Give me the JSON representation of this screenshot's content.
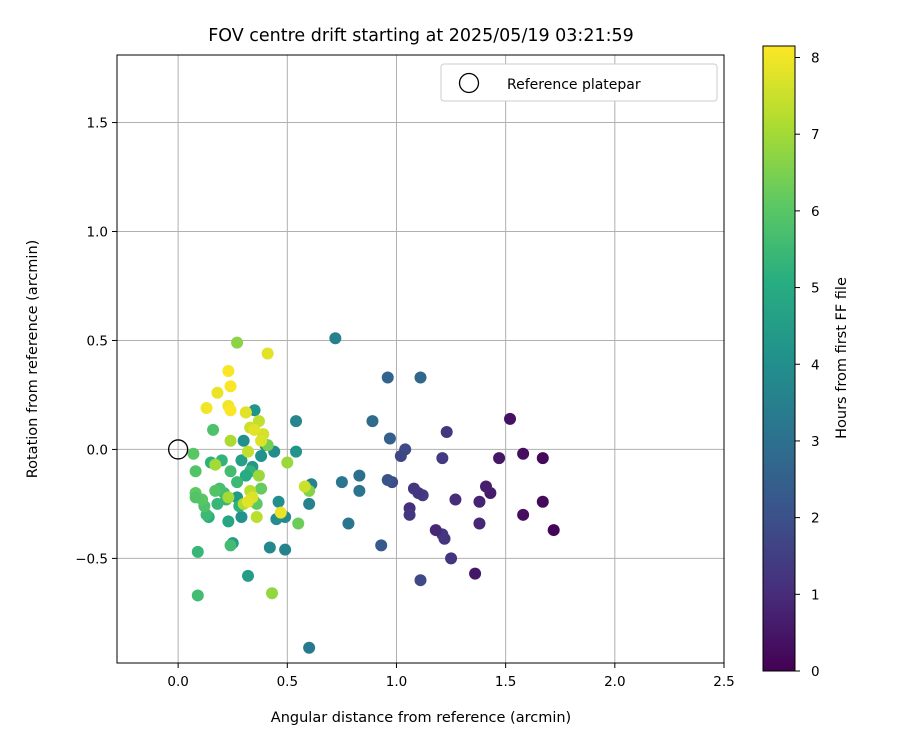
{
  "chart_data": {
    "type": "scatter",
    "title": "FOV centre drift starting at 2025/05/19 03:21:59",
    "xlabel": "Angular distance from reference (arcmin)",
    "ylabel": "Rotation from reference (arcmin)",
    "xlim": [
      -0.28,
      2.5
    ],
    "ylim": [
      -0.98,
      1.81
    ],
    "xticks": [
      0.0,
      0.5,
      1.0,
      1.5,
      2.0,
      2.5
    ],
    "xtick_labels": [
      "0.0",
      "0.5",
      "1.0",
      "1.5",
      "2.0",
      "2.5"
    ],
    "yticks": [
      -0.5,
      0.0,
      0.5,
      1.0,
      1.5
    ],
    "ytick_labels": [
      "−0.5",
      "0.0",
      "0.5",
      "1.0",
      "1.5"
    ],
    "grid": true,
    "colormap": "viridis",
    "colorbar": {
      "label": "Hours from first FF file",
      "min": 0,
      "max": 8.15,
      "ticks": [
        0,
        1,
        2,
        3,
        4,
        5,
        6,
        7,
        8
      ],
      "tick_labels": [
        "0",
        "1",
        "2",
        "3",
        "4",
        "5",
        "6",
        "7",
        "8"
      ]
    },
    "legend": {
      "position": "top-right",
      "entries": [
        {
          "label": "Reference platepar",
          "marker": "open-circle"
        }
      ]
    },
    "reference_point": {
      "x": 0.0,
      "y": 0.0
    },
    "points": [
      {
        "x": 1.72,
        "y": -0.37,
        "h": 0.1
      },
      {
        "x": 1.67,
        "y": -0.04,
        "h": 0.2
      },
      {
        "x": 1.67,
        "y": -0.24,
        "h": 0.2
      },
      {
        "x": 1.58,
        "y": -0.02,
        "h": 0.3
      },
      {
        "x": 1.58,
        "y": -0.3,
        "h": 0.3
      },
      {
        "x": 1.52,
        "y": 0.14,
        "h": 0.4
      },
      {
        "x": 1.47,
        "y": -0.04,
        "h": 0.5
      },
      {
        "x": 1.43,
        "y": -0.2,
        "h": 0.6
      },
      {
        "x": 1.41,
        "y": -0.17,
        "h": 0.7
      },
      {
        "x": 1.38,
        "y": -0.24,
        "h": 0.8
      },
      {
        "x": 1.38,
        "y": -0.34,
        "h": 0.9
      },
      {
        "x": 1.36,
        "y": -0.57,
        "h": 0.5
      },
      {
        "x": 1.27,
        "y": -0.23,
        "h": 1.0
      },
      {
        "x": 1.25,
        "y": -0.5,
        "h": 1.2
      },
      {
        "x": 1.23,
        "y": 0.08,
        "h": 1.3
      },
      {
        "x": 1.22,
        "y": -0.41,
        "h": 1.2
      },
      {
        "x": 1.21,
        "y": -0.39,
        "h": 1.3
      },
      {
        "x": 1.21,
        "y": -0.04,
        "h": 1.4
      },
      {
        "x": 1.18,
        "y": -0.37,
        "h": 0.9
      },
      {
        "x": 1.12,
        "y": -0.21,
        "h": 1.4
      },
      {
        "x": 1.11,
        "y": -0.6,
        "h": 1.8
      },
      {
        "x": 1.1,
        "y": -0.2,
        "h": 1.2
      },
      {
        "x": 1.08,
        "y": -0.18,
        "h": 1.3
      },
      {
        "x": 1.06,
        "y": -0.27,
        "h": 1.1
      },
      {
        "x": 1.06,
        "y": -0.3,
        "h": 1.3
      },
      {
        "x": 1.04,
        "y": 0.0,
        "h": 1.8
      },
      {
        "x": 1.02,
        "y": -0.03,
        "h": 1.7
      },
      {
        "x": 0.98,
        "y": -0.15,
        "h": 1.9
      },
      {
        "x": 0.96,
        "y": -0.14,
        "h": 2.1
      },
      {
        "x": 0.97,
        "y": 0.05,
        "h": 2.5
      },
      {
        "x": 0.96,
        "y": 0.33,
        "h": 2.6
      },
      {
        "x": 1.11,
        "y": 0.33,
        "h": 2.7
      },
      {
        "x": 0.93,
        "y": -0.44,
        "h": 2.3
      },
      {
        "x": 0.89,
        "y": 0.13,
        "h": 2.8
      },
      {
        "x": 0.83,
        "y": -0.12,
        "h": 3.0
      },
      {
        "x": 0.83,
        "y": -0.19,
        "h": 3.1
      },
      {
        "x": 0.78,
        "y": -0.34,
        "h": 3.2
      },
      {
        "x": 0.75,
        "y": -0.15,
        "h": 3.2
      },
      {
        "x": 0.72,
        "y": 0.51,
        "h": 3.5
      },
      {
        "x": 0.61,
        "y": -0.16,
        "h": 3.6
      },
      {
        "x": 0.6,
        "y": -0.25,
        "h": 3.6
      },
      {
        "x": 0.6,
        "y": -0.91,
        "h": 3.3
      },
      {
        "x": 0.54,
        "y": 0.13,
        "h": 3.7
      },
      {
        "x": 0.54,
        "y": -0.01,
        "h": 4.2
      },
      {
        "x": 0.49,
        "y": -0.46,
        "h": 3.6
      },
      {
        "x": 0.49,
        "y": -0.31,
        "h": 3.8
      },
      {
        "x": 0.46,
        "y": -0.24,
        "h": 4.0
      },
      {
        "x": 0.45,
        "y": -0.32,
        "h": 3.9
      },
      {
        "x": 0.42,
        "y": -0.45,
        "h": 3.8
      },
      {
        "x": 0.44,
        "y": -0.01,
        "h": 3.9
      },
      {
        "x": 0.4,
        "y": 0.02,
        "h": 3.8
      },
      {
        "x": 0.38,
        "y": -0.03,
        "h": 4.1
      },
      {
        "x": 0.35,
        "y": 0.18,
        "h": 4.2
      },
      {
        "x": 0.34,
        "y": -0.08,
        "h": 4.3
      },
      {
        "x": 0.3,
        "y": 0.04,
        "h": 4.0
      },
      {
        "x": 0.29,
        "y": -0.05,
        "h": 4.6
      },
      {
        "x": 0.29,
        "y": -0.31,
        "h": 4.1
      },
      {
        "x": 0.27,
        "y": -0.22,
        "h": 4.4
      },
      {
        "x": 0.25,
        "y": -0.43,
        "h": 4.4
      },
      {
        "x": 0.32,
        "y": -0.58,
        "h": 4.5
      },
      {
        "x": 0.35,
        "y": -0.24,
        "h": 5.1
      },
      {
        "x": 0.33,
        "y": -0.1,
        "h": 5.3
      },
      {
        "x": 0.31,
        "y": -0.12,
        "h": 5.0
      },
      {
        "x": 0.28,
        "y": -0.26,
        "h": 5.2
      },
      {
        "x": 0.27,
        "y": -0.15,
        "h": 5.5
      },
      {
        "x": 0.24,
        "y": -0.1,
        "h": 5.6
      },
      {
        "x": 0.23,
        "y": -0.33,
        "h": 4.8
      },
      {
        "x": 0.22,
        "y": -0.23,
        "h": 5.4
      },
      {
        "x": 0.21,
        "y": -0.2,
        "h": 5.6
      },
      {
        "x": 0.2,
        "y": -0.05,
        "h": 5.3
      },
      {
        "x": 0.19,
        "y": -0.18,
        "h": 5.7
      },
      {
        "x": 0.18,
        "y": -0.25,
        "h": 5.4
      },
      {
        "x": 0.17,
        "y": -0.19,
        "h": 5.9
      },
      {
        "x": 0.16,
        "y": 0.09,
        "h": 5.8
      },
      {
        "x": 0.15,
        "y": -0.06,
        "h": 5.2
      },
      {
        "x": 0.14,
        "y": -0.31,
        "h": 5.1
      },
      {
        "x": 0.13,
        "y": -0.3,
        "h": 5.5
      },
      {
        "x": 0.12,
        "y": -0.26,
        "h": 5.8
      },
      {
        "x": 0.11,
        "y": -0.23,
        "h": 6.0
      },
      {
        "x": 0.09,
        "y": -0.47,
        "h": 5.4
      },
      {
        "x": 0.08,
        "y": -0.2,
        "h": 6.1
      },
      {
        "x": 0.08,
        "y": -0.22,
        "h": 5.9
      },
      {
        "x": 0.08,
        "y": -0.1,
        "h": 5.9
      },
      {
        "x": 0.07,
        "y": -0.02,
        "h": 6.0
      },
      {
        "x": 0.09,
        "y": -0.67,
        "h": 5.6
      },
      {
        "x": 0.24,
        "y": -0.44,
        "h": 5.6
      },
      {
        "x": 0.36,
        "y": -0.25,
        "h": 6.1
      },
      {
        "x": 0.38,
        "y": -0.18,
        "h": 6.2
      },
      {
        "x": 0.41,
        "y": 0.02,
        "h": 6.4
      },
      {
        "x": 0.55,
        "y": -0.34,
        "h": 6.3
      },
      {
        "x": 0.6,
        "y": -0.19,
        "h": 6.6
      },
      {
        "x": 0.5,
        "y": -0.06,
        "h": 6.9
      },
      {
        "x": 0.43,
        "y": -0.66,
        "h": 6.8
      },
      {
        "x": 0.27,
        "y": 0.49,
        "h": 6.7
      },
      {
        "x": 0.23,
        "y": -0.22,
        "h": 7.0
      },
      {
        "x": 0.24,
        "y": 0.04,
        "h": 7.1
      },
      {
        "x": 0.17,
        "y": -0.07,
        "h": 7.0
      },
      {
        "x": 0.3,
        "y": -0.25,
        "h": 7.2
      },
      {
        "x": 0.33,
        "y": -0.19,
        "h": 7.3
      },
      {
        "x": 0.36,
        "y": -0.31,
        "h": 7.3
      },
      {
        "x": 0.37,
        "y": -0.12,
        "h": 6.9
      },
      {
        "x": 0.31,
        "y": 0.17,
        "h": 7.2
      },
      {
        "x": 0.32,
        "y": -0.01,
        "h": 7.4
      },
      {
        "x": 0.33,
        "y": 0.1,
        "h": 7.5
      },
      {
        "x": 0.37,
        "y": 0.13,
        "h": 7.4
      },
      {
        "x": 0.39,
        "y": 0.07,
        "h": 7.6
      },
      {
        "x": 0.38,
        "y": 0.04,
        "h": 7.7
      },
      {
        "x": 0.34,
        "y": -0.22,
        "h": 7.7
      },
      {
        "x": 0.32,
        "y": -0.24,
        "h": 7.8
      },
      {
        "x": 0.35,
        "y": 0.09,
        "h": 7.8
      },
      {
        "x": 0.47,
        "y": -0.29,
        "h": 7.9
      },
      {
        "x": 0.58,
        "y": -0.17,
        "h": 7.5
      },
      {
        "x": 0.41,
        "y": 0.44,
        "h": 7.8
      },
      {
        "x": 0.18,
        "y": 0.26,
        "h": 7.9
      },
      {
        "x": 0.13,
        "y": 0.19,
        "h": 8.0
      },
      {
        "x": 0.23,
        "y": 0.2,
        "h": 8.0
      },
      {
        "x": 0.24,
        "y": 0.29,
        "h": 8.1
      },
      {
        "x": 0.23,
        "y": 0.36,
        "h": 8.1
      },
      {
        "x": 0.24,
        "y": 0.18,
        "h": 8.1
      },
      {
        "x": 0.31,
        "y": 0.17,
        "h": 7.8
      }
    ]
  }
}
